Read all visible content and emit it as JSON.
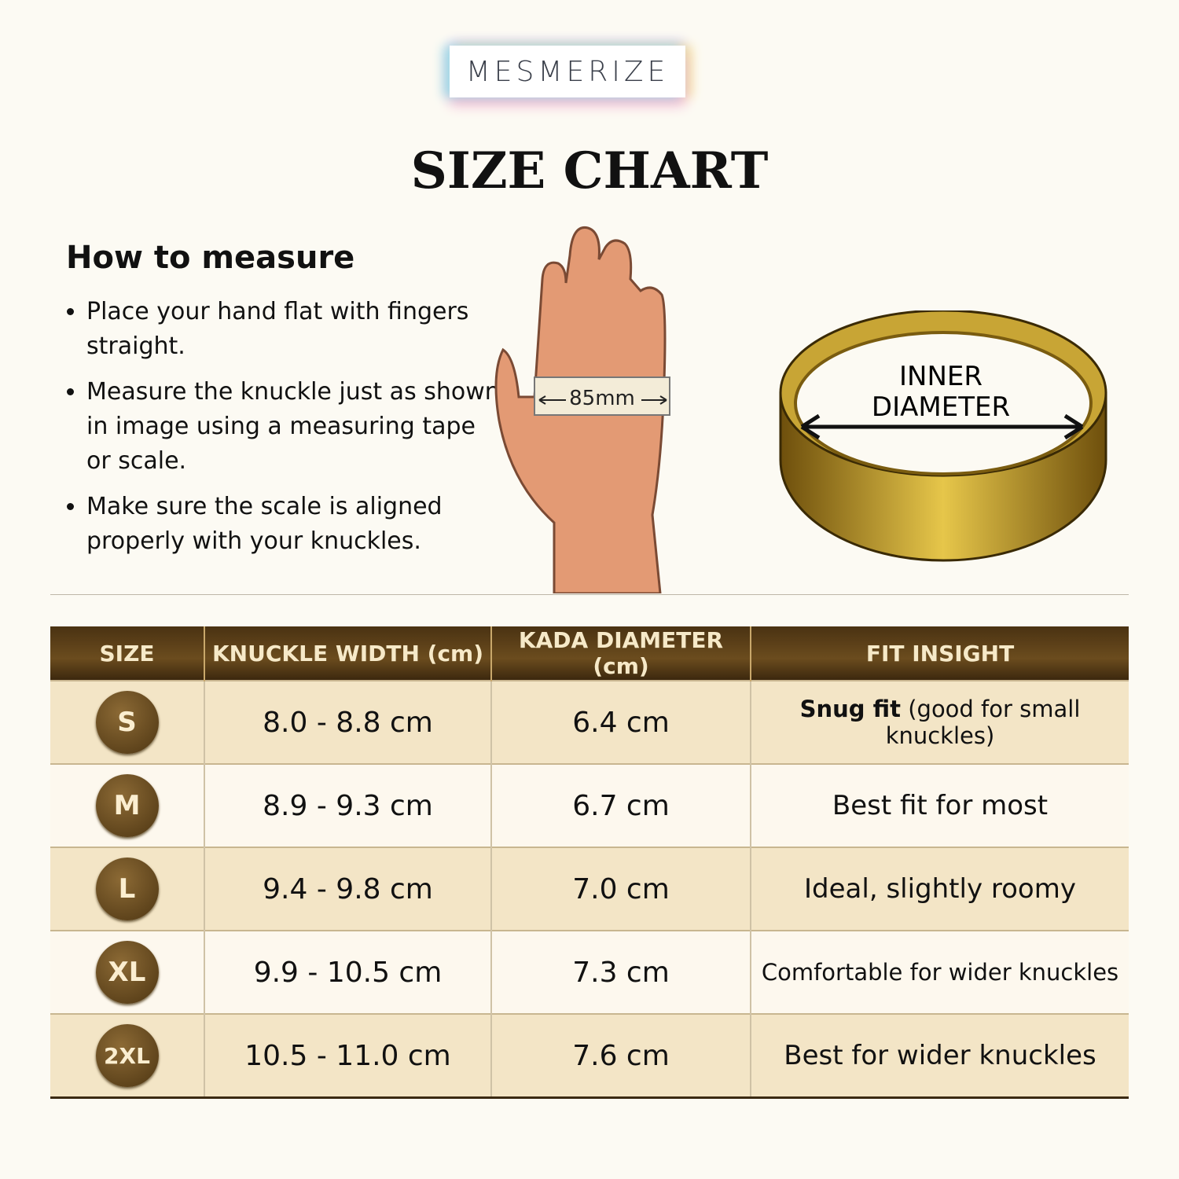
{
  "brand": {
    "logo": "MESMERIZE"
  },
  "title": "SIZE CHART",
  "how_to": {
    "heading": "How to measure",
    "steps": [
      "Place your hand flat with fingers straight.",
      "Measure the knuckle just as shown in image using a measuring tape or scale.",
      "Make sure the scale is aligned properly with your knuckles."
    ]
  },
  "hand_illustration": {
    "tape_label": "85mm"
  },
  "ring_illustration": {
    "label_line1": "INNER",
    "label_line2": "DIAMETER"
  },
  "table": {
    "headers": [
      "SIZE",
      "KNUCKLE WIDTH (cm)",
      "KADA DIAMETER (cm)",
      "FIT INSIGHT"
    ],
    "rows": [
      {
        "size": "S",
        "knuckle": "8.0 - 8.8 cm",
        "diameter": "6.4 cm",
        "fit_bold": "Snug fit",
        "fit": " (good for small knuckles)"
      },
      {
        "size": "M",
        "knuckle": "8.9 - 9.3 cm",
        "diameter": "6.7 cm",
        "fit_bold": "",
        "fit": "Best fit for most"
      },
      {
        "size": "L",
        "knuckle": "9.4 - 9.8 cm",
        "diameter": "7.0 cm",
        "fit_bold": "",
        "fit": "Ideal, slightly roomy"
      },
      {
        "size": "XL",
        "knuckle": "9.9 - 10.5 cm",
        "diameter": "7.3 cm",
        "fit_bold": "",
        "fit": "Comfortable for wider knuckles"
      },
      {
        "size": "2XL",
        "knuckle": "10.5 - 11.0 cm",
        "diameter": "7.6 cm",
        "fit_bold": "",
        "fit": "Best for wider knuckles"
      }
    ]
  },
  "colors": {
    "header_brown": "#5a3e17",
    "row_beige": "#f3e5c6",
    "row_light": "#fdf8ee",
    "gold": "#c9a227"
  }
}
